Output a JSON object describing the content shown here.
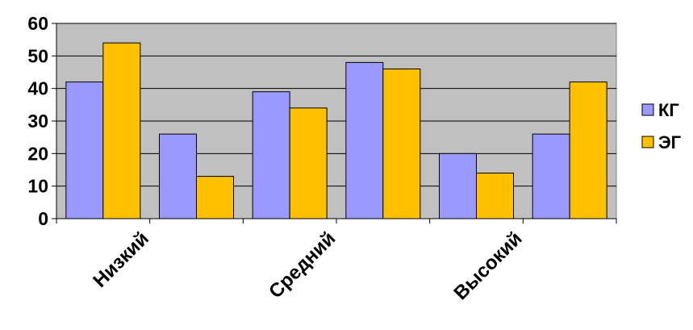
{
  "chart_data": {
    "type": "bar",
    "categories": [
      "Низкий",
      "",
      "Средний",
      "",
      "Высокий",
      ""
    ],
    "series": [
      {
        "name": "КГ",
        "values": [
          42,
          26,
          39,
          48,
          20,
          26
        ]
      },
      {
        "name": "ЭГ",
        "values": [
          54,
          13,
          34,
          46,
          14,
          42
        ]
      }
    ],
    "title": "",
    "xlabel": "",
    "ylabel": "",
    "ylim": [
      0,
      60
    ],
    "yticks": [
      "0",
      "10",
      "20",
      "30",
      "40",
      "50",
      "60"
    ],
    "grid": true,
    "legend_position": "right",
    "colors": {
      "series": [
        "#9999ff",
        "#ffc000"
      ],
      "plot_background": "#c0c0c0",
      "gridline": "#000000",
      "bar_outline": "#000000"
    }
  }
}
